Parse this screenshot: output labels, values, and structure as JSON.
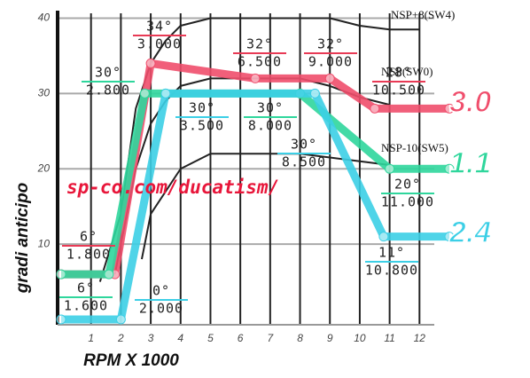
{
  "chart_data": {
    "type": "line",
    "ylabel": "gradi anticipo",
    "xlabel": "RPM X 1000",
    "watermark": "sp-co.com/ducatism/",
    "xlim": [
      0,
      13
    ],
    "ylim": [
      0,
      41
    ],
    "xticks": [
      1,
      2,
      3,
      4,
      5,
      6,
      7,
      8,
      9,
      10,
      11,
      12
    ],
    "yticks": [
      10,
      20,
      30,
      40
    ],
    "grid": true,
    "series": [
      {
        "name": "NSP+8(SW4)",
        "color": "#222222",
        "x": [
          1.3,
          2,
          2.5,
          3,
          3.5,
          4,
          5,
          8,
          9,
          10,
          11,
          12
        ],
        "values": [
          5,
          14,
          28,
          34,
          37,
          39,
          40,
          40,
          40,
          39,
          38.5,
          38.5
        ]
      },
      {
        "name": "NSP(SW0)",
        "color": "#222222",
        "x": [
          1.8,
          2.5,
          3,
          3.5,
          4,
          5,
          6,
          8,
          9,
          10,
          11
        ],
        "values": [
          6,
          20,
          26,
          29,
          31,
          32,
          32,
          32,
          31,
          29.5,
          28.5
        ]
      },
      {
        "name": "NSP-10(SW5)",
        "color": "#222222",
        "x": [
          2.7,
          3,
          3.5,
          4,
          5,
          6,
          8,
          9,
          10,
          11
        ],
        "values": [
          8,
          14,
          17,
          20,
          22,
          22,
          22,
          21.5,
          21,
          20.5
        ]
      },
      {
        "name": "3.0",
        "color": "#f04e6c",
        "x": [
          0,
          1.8,
          3.0,
          6.5,
          9.0,
          10.5,
          13
        ],
        "values": [
          6,
          6,
          34,
          32,
          32,
          28,
          28
        ]
      },
      {
        "name": "1.1",
        "color": "#2fd69c",
        "x": [
          0,
          1.6,
          2.8,
          3.5,
          8.0,
          11.0,
          13
        ],
        "values": [
          6,
          6,
          30,
          30,
          30,
          20,
          20
        ]
      },
      {
        "name": "2.4",
        "color": "#3ccfe6",
        "x": [
          0,
          2.0,
          3.5,
          8.5,
          10.8,
          13
        ],
        "values": [
          0,
          0,
          30,
          30,
          11,
          11
        ]
      }
    ],
    "annotations": [
      {
        "degree": "6°",
        "rpm": "1.800"
      },
      {
        "degree": "30°",
        "rpm": "2.800"
      },
      {
        "degree": "34°",
        "rpm": "3.000"
      },
      {
        "degree": "6°",
        "rpm": "1.600"
      },
      {
        "degree": "0°",
        "rpm": "2.000"
      },
      {
        "degree": "30°",
        "rpm": "3.500"
      },
      {
        "degree": "32°",
        "rpm": "6.500"
      },
      {
        "degree": "30°",
        "rpm": "8.000"
      },
      {
        "degree": "32°",
        "rpm": "9.000"
      },
      {
        "degree": "28°",
        "rpm": "10.500"
      },
      {
        "degree": "30°",
        "rpm": "8.500"
      },
      {
        "degree": "20°",
        "rpm": "11.000"
      },
      {
        "degree": "11°",
        "rpm": "10.800"
      }
    ]
  }
}
